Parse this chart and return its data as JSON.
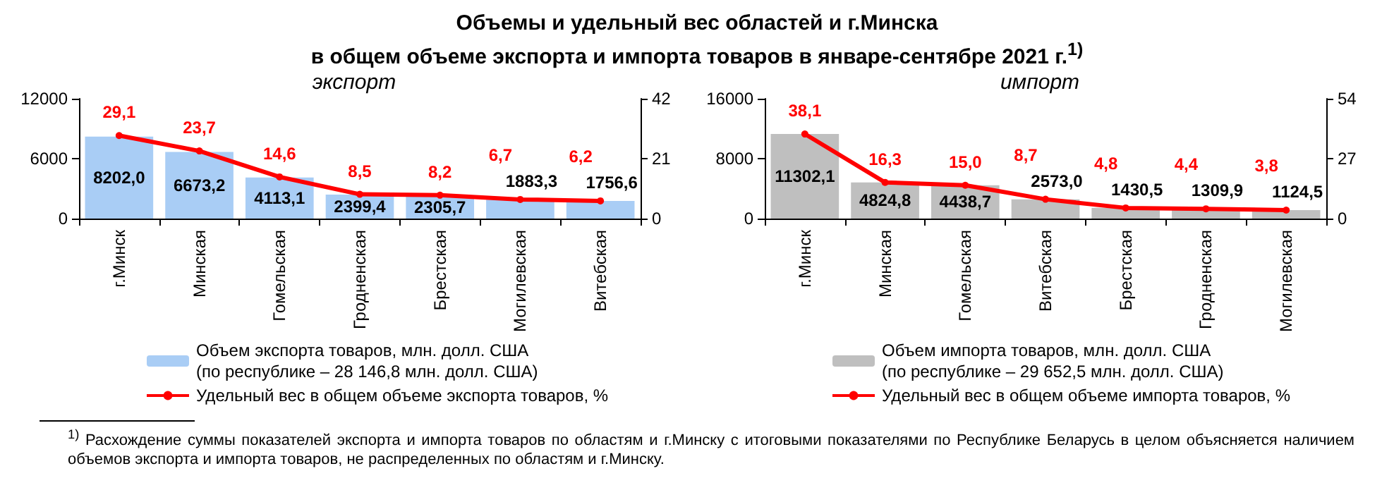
{
  "chart_data": [
    {
      "type": "bar",
      "title": "Объемы и удельный вес областей и г.Минска\nв общем объеме экспорта и импорта товаров в январе-сентябре 2021 г.$^{1)}$",
      "subtitle": "экспорт",
      "categories": [
        "г.Минск",
        "Минская",
        "Гомельская",
        "Гродненская",
        "Брестская",
        "Могилевская",
        "Витебская"
      ],
      "series": [
        {
          "name": "Объем экспорта товаров, млн. долл. США\n(по республике – 28 146,8 млн. долл. США)",
          "color": "#a9cdf5",
          "values": [
            8202.0,
            6673.2,
            4113.1,
            2399.4,
            2305.7,
            1883.3,
            1756.6
          ],
          "value_labels": [
            "8202,0",
            "6673,2",
            "4113,1",
            "2399,4",
            "2305,7",
            "1883,3",
            "1756,6"
          ]
        },
        {
          "type": "line",
          "axis": "y2",
          "name": "Удельный вес в общем объеме экспорта товаров, %",
          "color": "#ff0000",
          "marker": "circle",
          "values": [
            29.1,
            23.7,
            14.6,
            8.5,
            8.2,
            6.7,
            6.2
          ],
          "value_labels": [
            "29,1",
            "23,7",
            "14,6",
            "8,5",
            "8,2",
            "6,7",
            "6,2"
          ]
        }
      ],
      "ylim": [
        0,
        12000
      ],
      "yticks": [
        0,
        6000,
        12000
      ],
      "y2lim": [
        0,
        42
      ],
      "y2ticks": [
        0,
        21,
        42
      ],
      "grid": false,
      "legend": "bottom"
    },
    {
      "type": "bar",
      "subtitle": "импорт",
      "categories": [
        "г.Минск",
        "Минская",
        "Гомельская",
        "Витебская",
        "Брестская",
        "Гродненская",
        "Могилевская"
      ],
      "series": [
        {
          "name": "Объем импорта товаров, млн. долл. США\n(по республике – 29 652,5 млн. долл. США)",
          "color": "#bfbfbf",
          "values": [
            11302.1,
            4824.8,
            4438.7,
            2573.0,
            1430.5,
            1309.9,
            1124.5
          ],
          "value_labels": [
            "11302,1",
            "4824,8",
            "4438,7",
            "2573,0",
            "1430,5",
            "1309,9",
            "1124,5"
          ]
        },
        {
          "type": "line",
          "axis": "y2",
          "name": "Удельный вес в общем объеме импорта товаров, %",
          "color": "#ff0000",
          "marker": "circle",
          "values": [
            38.1,
            16.3,
            15.0,
            8.7,
            4.8,
            4.4,
            3.8
          ],
          "value_labels": [
            "38,1",
            "16,3",
            "15,0",
            "8,7",
            "4,8",
            "4,4",
            "3,8"
          ]
        }
      ],
      "ylim": [
        0,
        16000
      ],
      "yticks": [
        0,
        8000,
        16000
      ],
      "y2lim": [
        0,
        54
      ],
      "y2ticks": [
        0,
        27,
        54
      ],
      "grid": false,
      "legend": "bottom",
      "annotations": [
        "$^{1)}$ Расхождение суммы показателей экспорта и импорта товаров по областям и г.Минску с итоговыми показателями по Республике Беларусь в целом объясняется наличием объемов экспорта и импорта товаров, не распределенных по областям и г.Минску."
      ]
    }
  ]
}
